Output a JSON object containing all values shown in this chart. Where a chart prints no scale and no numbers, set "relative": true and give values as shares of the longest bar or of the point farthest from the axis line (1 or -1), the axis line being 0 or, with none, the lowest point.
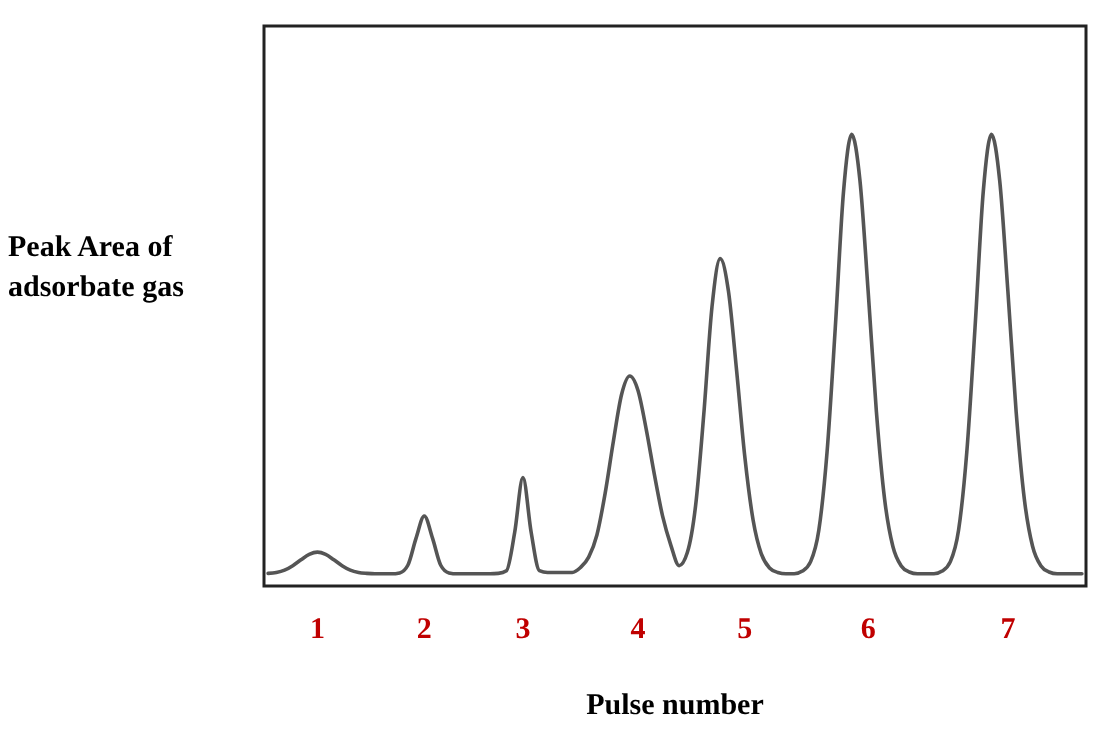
{
  "chart_data": {
    "type": "line",
    "xlabel": "Pulse number",
    "ylabel": "Peak Area of adsorbate gas",
    "relative": true,
    "tick_labels": "x",
    "categories": [
      null,
      null,
      null,
      null,
      null,
      null,
      "1",
      null,
      null,
      null,
      null,
      null,
      null,
      null,
      null,
      null,
      null,
      null,
      null,
      "2",
      null,
      null,
      null,
      null,
      null,
      null,
      null,
      null,
      null,
      null,
      null,
      "3",
      null,
      null,
      null,
      null,
      null,
      null,
      null,
      null,
      null,
      null,
      null,
      null,
      null,
      "4",
      null,
      null,
      null,
      null,
      null,
      null,
      null,
      null,
      null,
      null,
      null,
      null,
      "5",
      null,
      null,
      null,
      null,
      null,
      null,
      null,
      null,
      null,
      null,
      null,
      null,
      null,
      null,
      "6",
      null,
      null,
      null,
      null,
      null,
      null,
      null,
      null,
      null,
      null,
      null,
      null,
      null,
      null,
      null,
      null,
      "7",
      null,
      null,
      null,
      null,
      null,
      null,
      null,
      null,
      null
    ],
    "series": [
      {
        "color": "#555555",
        "values": [
          0.028,
          0.03,
          0.035,
          0.045,
          0.058,
          0.07,
          0.075,
          0.07,
          0.058,
          0.045,
          0.035,
          0.03,
          0.028,
          0.027,
          0.027,
          0.027,
          0.029,
          0.046,
          0.106,
          0.155,
          0.106,
          0.046,
          0.029,
          0.027,
          0.027,
          0.027,
          0.027,
          0.027,
          0.028,
          0.034,
          0.119,
          0.24,
          0.119,
          0.034,
          0.03,
          0.03,
          0.03,
          0.03,
          0.041,
          0.064,
          0.113,
          0.205,
          0.32,
          0.424,
          0.465,
          0.433,
          0.347,
          0.246,
          0.154,
          0.09,
          0.045,
          0.074,
          0.177,
          0.38,
          0.618,
          0.725,
          0.653,
          0.476,
          0.285,
          0.146,
          0.071,
          0.04,
          0.03,
          0.027,
          0.027,
          0.033,
          0.054,
          0.124,
          0.297,
          0.572,
          0.873,
          1,
          0.898,
          0.652,
          0.386,
          0.192,
          0.088,
          0.045,
          0.031,
          0.027,
          0.027,
          0.027,
          0.033,
          0.054,
          0.124,
          0.297,
          0.572,
          0.873,
          1,
          0.898,
          0.652,
          0.386,
          0.192,
          0.088,
          0.045,
          0.031,
          0.027,
          0.027,
          0.027,
          0.027
        ]
      }
    ]
  }
}
